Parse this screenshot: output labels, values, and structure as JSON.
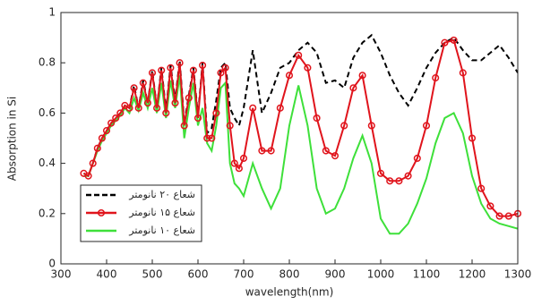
{
  "chart_data": {
    "type": "line",
    "xlabel": "wavelength(nm)",
    "ylabel": "Absorption in Si",
    "xlim": [
      300,
      1300
    ],
    "ylim": [
      0,
      1
    ],
    "xticks": [
      300,
      400,
      500,
      600,
      700,
      800,
      900,
      1000,
      1100,
      1200,
      1300
    ],
    "yticks": [
      0,
      0.2,
      0.4,
      0.6,
      0.8,
      1
    ],
    "legend": "lower left",
    "x": [
      350,
      360,
      370,
      380,
      390,
      400,
      410,
      420,
      430,
      440,
      450,
      460,
      470,
      480,
      490,
      500,
      510,
      520,
      530,
      540,
      550,
      560,
      570,
      580,
      590,
      600,
      610,
      620,
      630,
      640,
      650,
      660,
      670,
      680,
      690,
      700,
      720,
      740,
      760,
      780,
      800,
      820,
      840,
      860,
      880,
      900,
      920,
      940,
      960,
      980,
      1000,
      1020,
      1040,
      1060,
      1080,
      1100,
      1120,
      1140,
      1160,
      1180,
      1200,
      1220,
      1240,
      1260,
      1280,
      1300
    ],
    "series": [
      {
        "name": "شعاع ۲۰ نانومتر",
        "color": "#000000",
        "style": "dashed",
        "values": [
          0.36,
          0.35,
          0.4,
          0.46,
          0.5,
          0.53,
          0.56,
          0.58,
          0.6,
          0.63,
          0.62,
          0.71,
          0.62,
          0.73,
          0.64,
          0.77,
          0.62,
          0.78,
          0.61,
          0.79,
          0.65,
          0.81,
          0.56,
          0.67,
          0.78,
          0.59,
          0.8,
          0.52,
          0.54,
          0.65,
          0.78,
          0.8,
          0.62,
          0.58,
          0.55,
          0.62,
          0.85,
          0.6,
          0.68,
          0.78,
          0.8,
          0.85,
          0.88,
          0.84,
          0.72,
          0.73,
          0.7,
          0.82,
          0.88,
          0.91,
          0.84,
          0.75,
          0.68,
          0.63,
          0.7,
          0.78,
          0.84,
          0.88,
          0.9,
          0.85,
          0.81,
          0.81,
          0.84,
          0.87,
          0.82,
          0.76
        ]
      },
      {
        "name": "شعاع ۱۵ نانومتر",
        "color": "#e0141c",
        "style": "solid-marker",
        "values": [
          0.36,
          0.35,
          0.4,
          0.46,
          0.5,
          0.53,
          0.56,
          0.58,
          0.6,
          0.63,
          0.62,
          0.7,
          0.62,
          0.72,
          0.64,
          0.76,
          0.62,
          0.77,
          0.6,
          0.78,
          0.64,
          0.8,
          0.55,
          0.66,
          0.77,
          0.58,
          0.79,
          0.5,
          0.5,
          0.6,
          0.76,
          0.78,
          0.55,
          0.4,
          0.38,
          0.42,
          0.62,
          0.45,
          0.45,
          0.62,
          0.75,
          0.83,
          0.78,
          0.58,
          0.45,
          0.43,
          0.55,
          0.7,
          0.75,
          0.55,
          0.36,
          0.33,
          0.33,
          0.35,
          0.42,
          0.55,
          0.74,
          0.88,
          0.89,
          0.76,
          0.5,
          0.3,
          0.23,
          0.19,
          0.19,
          0.2
        ]
      },
      {
        "name": "شعاع ۱۰ نانومتر",
        "color": "#3ee03a",
        "style": "solid",
        "values": [
          0.35,
          0.35,
          0.4,
          0.45,
          0.49,
          0.52,
          0.55,
          0.57,
          0.59,
          0.62,
          0.6,
          0.66,
          0.61,
          0.68,
          0.62,
          0.7,
          0.6,
          0.72,
          0.58,
          0.73,
          0.62,
          0.75,
          0.5,
          0.62,
          0.72,
          0.55,
          0.62,
          0.48,
          0.45,
          0.55,
          0.7,
          0.72,
          0.4,
          0.32,
          0.3,
          0.27,
          0.4,
          0.3,
          0.22,
          0.3,
          0.55,
          0.71,
          0.55,
          0.3,
          0.2,
          0.22,
          0.3,
          0.42,
          0.51,
          0.4,
          0.18,
          0.12,
          0.12,
          0.16,
          0.24,
          0.34,
          0.48,
          0.58,
          0.6,
          0.52,
          0.35,
          0.24,
          0.18,
          0.16,
          0.15,
          0.14
        ]
      }
    ]
  }
}
